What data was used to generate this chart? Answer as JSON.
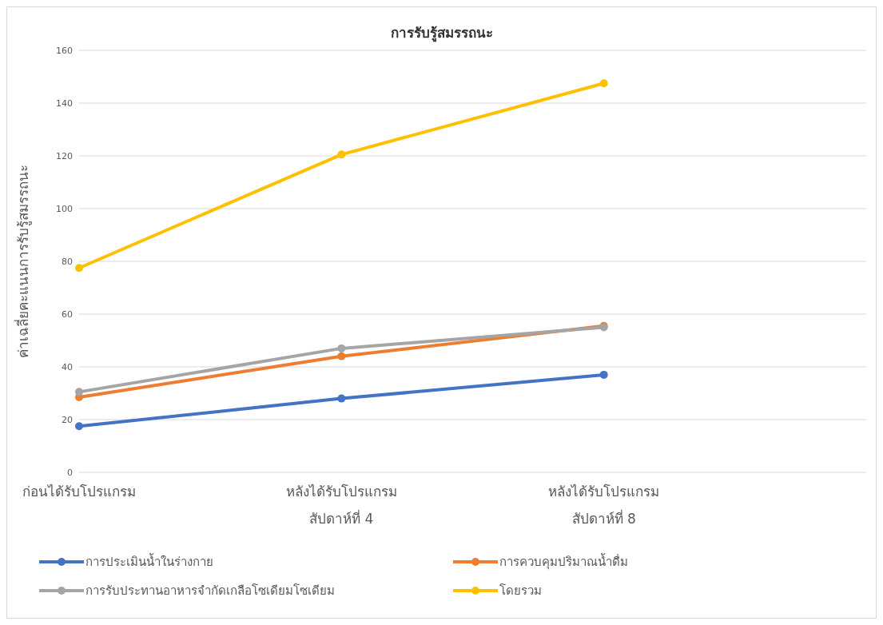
{
  "chart_data": {
    "type": "line",
    "title": "การรับรู้สมรรถนะ",
    "ylabel": "ค่าเฉลี่ยคะแนนการรับรู้สมรรถนะ",
    "categories": [
      "ก่อนได้รับโปรแกรม",
      "หลังได้รับโปรแกรม สัปดาห์ที่ 4",
      "หลังได้รับโปรแกรม สัปดาห์ที่ 8",
      null
    ],
    "series": [
      {
        "name": "การประเมินน้ำในร่างกาย",
        "color": "#4472c4",
        "values": [
          17.5,
          28,
          37,
          null
        ]
      },
      {
        "name": "การควบคุมปริมาณน้ำดื่ม",
        "color": "#ed7d31",
        "values": [
          28.5,
          44,
          55.5,
          null
        ]
      },
      {
        "name": "การรับประทานอาหารจำกัดเกลือโซเดียมโซเดียม",
        "color": "#a5a5a5",
        "values": [
          30.5,
          47,
          55,
          null
        ]
      },
      {
        "name": "โดยรวม",
        "color": "#ffc000",
        "values": [
          77.5,
          120.5,
          147.5,
          null
        ]
      }
    ],
    "ylim": [
      0,
      160
    ],
    "yticks": [
      0,
      20,
      40,
      60,
      80,
      100,
      120,
      140,
      160
    ],
    "grid": "y",
    "legend": "bottom",
    "marker": "circle",
    "line_style": "solid"
  }
}
